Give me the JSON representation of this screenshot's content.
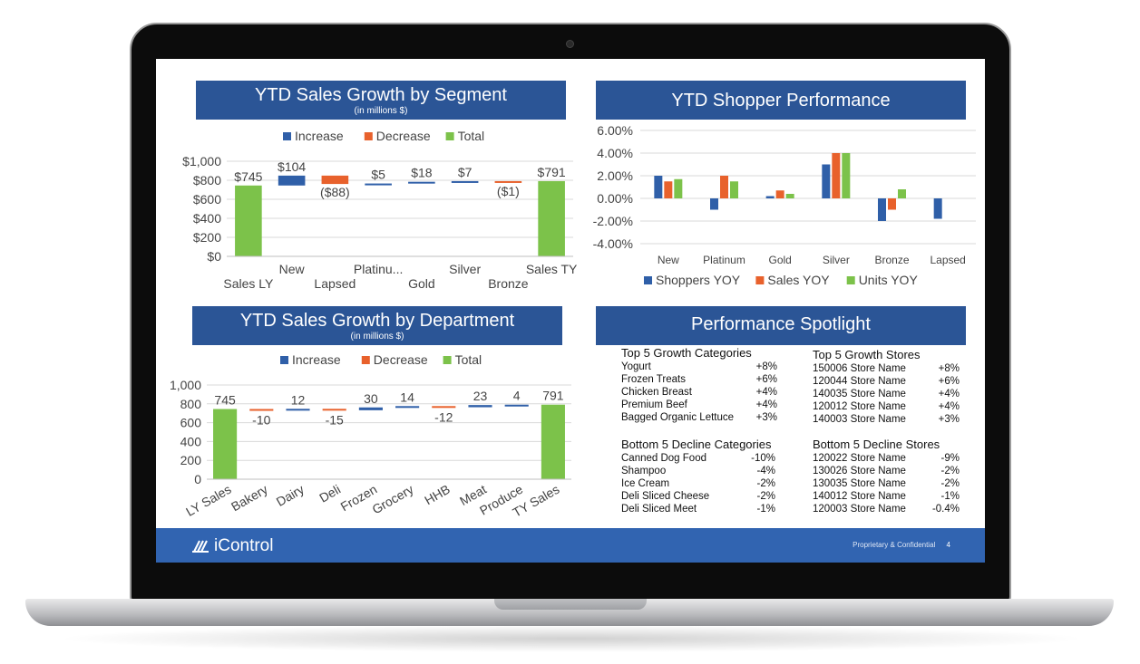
{
  "segment_chart": {
    "title": "YTD Sales Growth by Segment",
    "subtitle": "(in millions $)",
    "legend": [
      "Increase",
      "Decrease",
      "Total"
    ],
    "colors": {
      "increase": "#2f5fa8",
      "decrease": "#e8612c",
      "total": "#7cc24a"
    },
    "y_ticks": [
      "$1,000",
      "$800",
      "$600",
      "$400",
      "$200",
      "$0"
    ],
    "items": [
      {
        "cat": "Sales LY",
        "label": "$745",
        "type": "total",
        "start": 0,
        "end": 745
      },
      {
        "cat": "New",
        "label": "$104",
        "type": "increase",
        "start": 745,
        "end": 849
      },
      {
        "cat": "Lapsed",
        "label": "($88)",
        "type": "decrease",
        "start": 849,
        "end": 761
      },
      {
        "cat": "Platinu...",
        "label": "$5",
        "type": "increase",
        "start": 761,
        "end": 766
      },
      {
        "cat": "Gold",
        "label": "$18",
        "type": "increase",
        "start": 766,
        "end": 784
      },
      {
        "cat": "Silver",
        "label": "$7",
        "type": "increase",
        "start": 784,
        "end": 791
      },
      {
        "cat": "Bronze",
        "label": "($1)",
        "type": "decrease",
        "start": 791,
        "end": 790
      },
      {
        "cat": "Sales TY",
        "label": "$791",
        "type": "total",
        "start": 0,
        "end": 791
      }
    ]
  },
  "shopper_chart": {
    "title": "YTD Shopper Performance",
    "y_ticks": [
      "6.00%",
      "4.00%",
      "2.00%",
      "0.00%",
      "-2.00%",
      "-4.00%"
    ],
    "categories": [
      "New",
      "Platinum",
      "Gold",
      "Silver",
      "Bronze",
      "Lapsed"
    ],
    "series": [
      {
        "name": "Shoppers YOY",
        "color": "#2f5fa8",
        "values": [
          2.0,
          -1.0,
          0.2,
          3.0,
          -2.0,
          -1.8
        ]
      },
      {
        "name": "Sales YOY",
        "color": "#e8612c",
        "values": [
          1.5,
          2.0,
          0.7,
          4.0,
          -1.0,
          0
        ]
      },
      {
        "name": "Units YOY",
        "color": "#7cc24a",
        "values": [
          1.7,
          1.5,
          0.4,
          4.0,
          0.8,
          0
        ]
      }
    ]
  },
  "department_chart": {
    "title": "YTD Sales Growth by Department",
    "subtitle": "(in millions $)",
    "legend": [
      "Increase",
      "Decrease",
      "Total"
    ],
    "y_ticks": [
      "1,000",
      "800",
      "600",
      "400",
      "200",
      "0"
    ],
    "items": [
      {
        "cat": "LY Sales",
        "label": "745",
        "type": "total",
        "start": 0,
        "end": 745
      },
      {
        "cat": "Bakery",
        "label": "-10",
        "type": "decrease",
        "start": 745,
        "end": 735
      },
      {
        "cat": "Dairy",
        "label": "12",
        "type": "increase",
        "start": 735,
        "end": 747
      },
      {
        "cat": "Deli",
        "label": "-15",
        "type": "decrease",
        "start": 747,
        "end": 732
      },
      {
        "cat": "Frozen",
        "label": "30",
        "type": "increase",
        "start": 732,
        "end": 762
      },
      {
        "cat": "Grocery",
        "label": "14",
        "type": "increase",
        "start": 762,
        "end": 776
      },
      {
        "cat": "HHB",
        "label": "-12",
        "type": "decrease",
        "start": 776,
        "end": 764
      },
      {
        "cat": "Meat",
        "label": "23",
        "type": "increase",
        "start": 764,
        "end": 787
      },
      {
        "cat": "Produce",
        "label": "4",
        "type": "increase",
        "start": 787,
        "end": 791
      },
      {
        "cat": "TY Sales",
        "label": "791",
        "type": "total",
        "start": 0,
        "end": 791
      }
    ]
  },
  "spotlight": {
    "title": "Performance Spotlight",
    "growth_categories": {
      "header": "Top 5 Growth Categories",
      "rows": [
        [
          "Yogurt",
          "+8%"
        ],
        [
          "Frozen Treats",
          "+6%"
        ],
        [
          "Chicken Breast",
          "+4%"
        ],
        [
          "Premium Beef",
          "+4%"
        ],
        [
          "Bagged Organic Lettuce",
          "+3%"
        ]
      ]
    },
    "growth_stores": {
      "header": "Top 5 Growth Stores",
      "rows": [
        [
          "150006 Store Name",
          "+8%"
        ],
        [
          "120044 Store Name",
          "+6%"
        ],
        [
          "140035 Store Name",
          "+4%"
        ],
        [
          "120012 Store Name",
          "+4%"
        ],
        [
          "140003 Store Name",
          "+3%"
        ]
      ]
    },
    "decline_categories": {
      "header": "Bottom 5 Decline Categories",
      "rows": [
        [
          "Canned Dog Food",
          "-10%"
        ],
        [
          "Shampoo",
          "-4%"
        ],
        [
          "Ice Cream",
          "-2%"
        ],
        [
          "Deli Sliced Cheese",
          "-2%"
        ],
        [
          "Deli Sliced Meet",
          "-1%"
        ]
      ]
    },
    "decline_stores": {
      "header": "Bottom 5 Decline Stores",
      "rows": [
        [
          "120022 Store Name",
          "-9%"
        ],
        [
          "130026 Store Name",
          "-2%"
        ],
        [
          "130035 Store Name",
          "-2%"
        ],
        [
          "140012 Store Name",
          "-1%"
        ],
        [
          "120003 Store Name",
          "-0.4%"
        ]
      ]
    }
  },
  "footer": {
    "brand": "iControl",
    "confidential": "Proprietary & Confidential",
    "page_number": "4"
  }
}
